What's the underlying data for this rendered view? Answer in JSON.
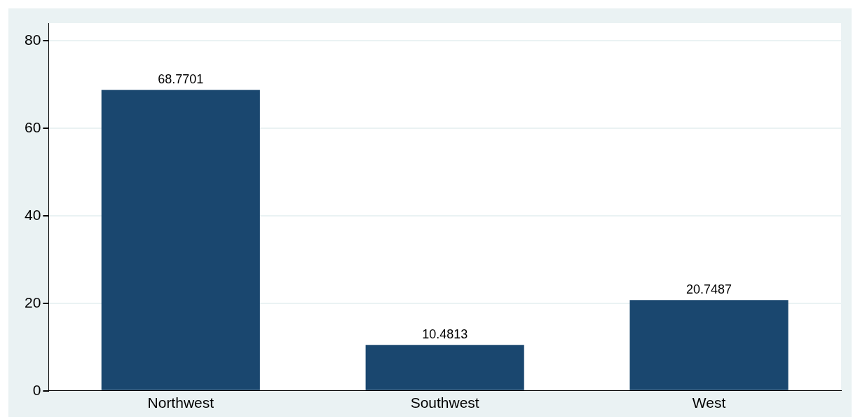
{
  "chart_data": {
    "type": "bar",
    "categories": [
      "Northwest",
      "Southwest",
      "West"
    ],
    "values": [
      68.7701,
      10.4813,
      20.7487
    ],
    "color": "#1a476f",
    "ylim": [
      0,
      84
    ],
    "yticks": [
      0,
      20,
      40,
      60,
      80
    ],
    "grid": "y",
    "data_labels": true
  }
}
